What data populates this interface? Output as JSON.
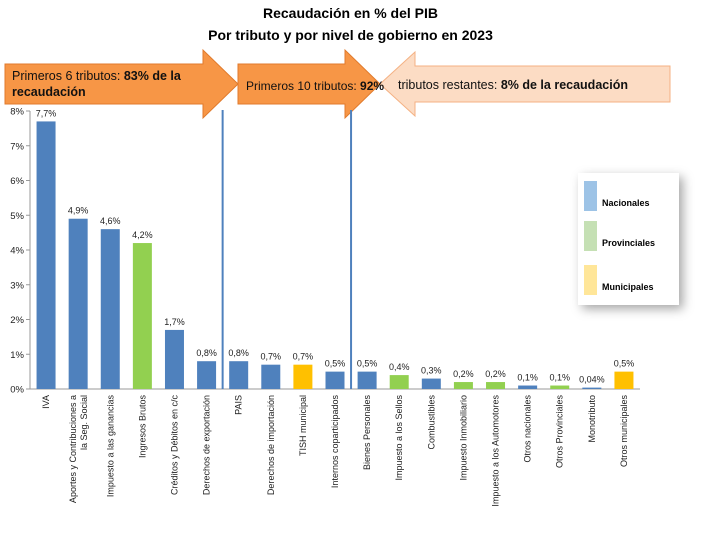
{
  "title": "Recaudación en % del PIB",
  "subtitle": "Por tributo y por nivel de gobierno en 2023",
  "annotations": {
    "arrow1": {
      "text": "Primeros 6 tributos: ",
      "bold": "83% de la recaudación"
    },
    "arrow2": {
      "text": "Primeros 10 tributos: ",
      "bold": "92%"
    },
    "arrow3": {
      "text": "tributos restantes: ",
      "bold": "8% de la recaudación"
    }
  },
  "colors": {
    "Nacionales": "#4f81bd",
    "Provinciales": "#92d050",
    "Municipales": "#ffc000",
    "arrow_dark": "#f79646",
    "arrow_light": "#fcdcc4",
    "divider": "#4f81bd",
    "axis": "#999999"
  },
  "legend": [
    {
      "name": "Nacionales",
      "color": "#9dc3e6"
    },
    {
      "name": "Provinciales",
      "color": "#c5e0b4"
    },
    {
      "name": "Municipales",
      "color": "#ffe699"
    }
  ],
  "chart_data": {
    "type": "bar",
    "ylim": [
      0,
      8
    ],
    "yticks": [
      "0%",
      "1%",
      "2%",
      "3%",
      "4%",
      "5%",
      "6%",
      "7%",
      "8%"
    ],
    "grid": false,
    "legend_position": "right",
    "categories": [
      "IVA",
      "Aportes y Contribuciones a la Seg. Social",
      "Impuesto a las ganancias",
      "Ingresos Brutos",
      "Créditos y Débitos en c/c",
      "Derechos de exportación",
      "PAIS",
      "Derechos de importación",
      "TISH municipal",
      "Internos coparticipados",
      "Bienes Personales",
      "Impuesto a los Sellos",
      "Combustibles",
      "Impuesto Inmobiliario",
      "Impuesto a los Automotores",
      "Otros nacionales",
      "Otros Provinciales",
      "Monotributo",
      "Otros municipales"
    ],
    "values": [
      7.7,
      4.9,
      4.6,
      4.2,
      1.7,
      0.8,
      0.8,
      0.7,
      0.7,
      0.5,
      0.5,
      0.4,
      0.3,
      0.2,
      0.2,
      0.1,
      0.1,
      0.04,
      0.5
    ],
    "labels": [
      "7,7%",
      "4,9%",
      "4,6%",
      "4,2%",
      "1,7%",
      "0,8%",
      "0,8%",
      "0,7%",
      "0,7%",
      "0,5%",
      "0,5%",
      "0,4%",
      "0,3%",
      "0,2%",
      "0,2%",
      "0,1%",
      "0,1%",
      "0,04%",
      "0,5%"
    ],
    "levels": [
      "Nacionales",
      "Nacionales",
      "Nacionales",
      "Provinciales",
      "Nacionales",
      "Nacionales",
      "Nacionales",
      "Nacionales",
      "Municipales",
      "Nacionales",
      "Nacionales",
      "Provinciales",
      "Nacionales",
      "Provinciales",
      "Provinciales",
      "Nacionales",
      "Provinciales",
      "Nacionales",
      "Municipales"
    ]
  }
}
